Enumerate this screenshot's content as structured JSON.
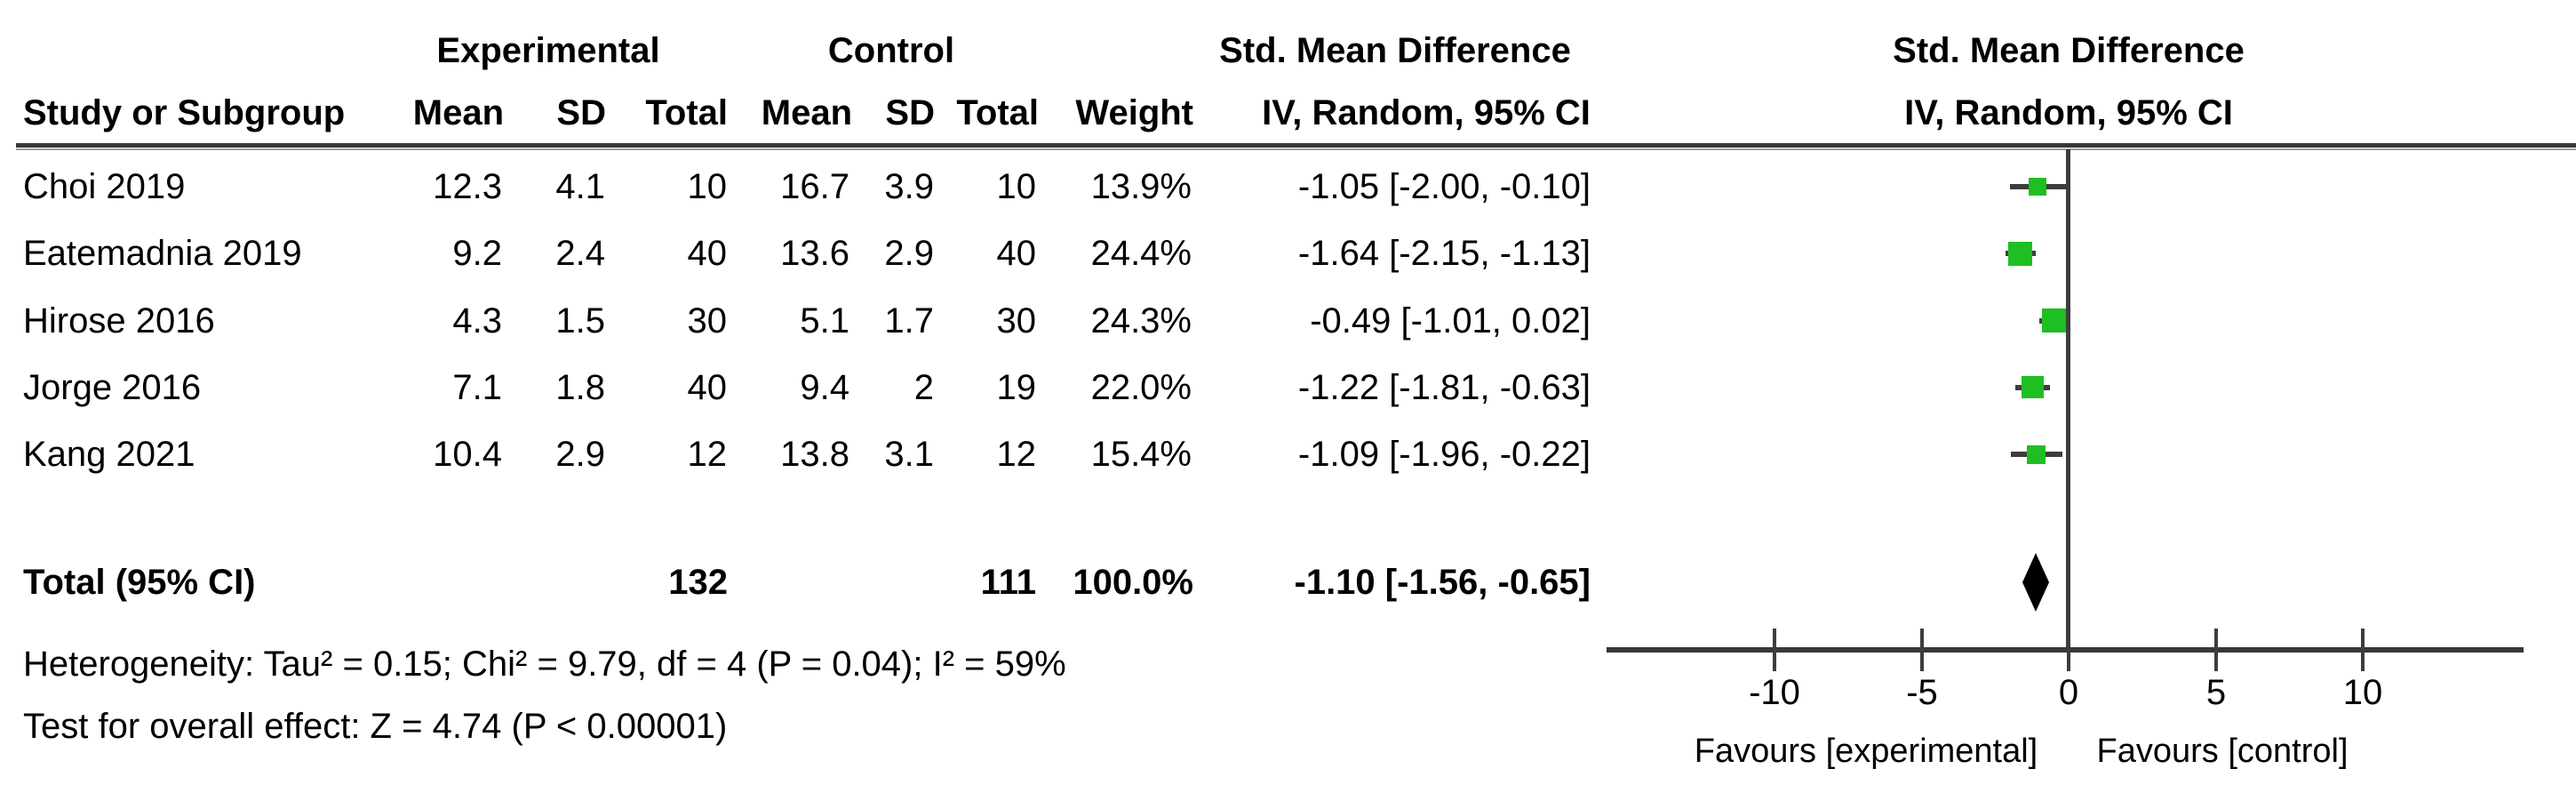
{
  "chart_data": {
    "type": "forest",
    "effect_measure": "Std. Mean Difference",
    "method": "IV, Random, 95% CI",
    "headers": {
      "study": "Study or Subgroup",
      "group1": "Experimental",
      "group2": "Control",
      "mean": "Mean",
      "sd": "SD",
      "total": "Total",
      "weight": "Weight",
      "effect_label": "Std. Mean Difference",
      "method_label": "IV, Random, 95% CI"
    },
    "studies": [
      {
        "name": "Choi 2019",
        "exp_mean": "12.3",
        "exp_sd": "4.1",
        "exp_total": "10",
        "ctl_mean": "16.7",
        "ctl_sd": "3.9",
        "ctl_total": "10",
        "weight": "13.9%",
        "weight_value": 13.9,
        "smd": -1.05,
        "ci_lower": -2.0,
        "ci_upper": -0.1,
        "ci_text": "-1.05 [-2.00, -0.10]"
      },
      {
        "name": "Eatemadnia 2019",
        "exp_mean": "9.2",
        "exp_sd": "2.4",
        "exp_total": "40",
        "ctl_mean": "13.6",
        "ctl_sd": "2.9",
        "ctl_total": "40",
        "weight": "24.4%",
        "weight_value": 24.4,
        "smd": -1.64,
        "ci_lower": -2.15,
        "ci_upper": -1.13,
        "ci_text": "-1.64 [-2.15, -1.13]"
      },
      {
        "name": "Hirose 2016",
        "exp_mean": "4.3",
        "exp_sd": "1.5",
        "exp_total": "30",
        "ctl_mean": "5.1",
        "ctl_sd": "1.7",
        "ctl_total": "30",
        "weight": "24.3%",
        "weight_value": 24.3,
        "smd": -0.49,
        "ci_lower": -1.01,
        "ci_upper": 0.02,
        "ci_text": "-0.49 [-1.01, 0.02]"
      },
      {
        "name": "Jorge 2016",
        "exp_mean": "7.1",
        "exp_sd": "1.8",
        "exp_total": "40",
        "ctl_mean": "9.4",
        "ctl_sd": "2",
        "ctl_total": "19",
        "weight": "22.0%",
        "weight_value": 22.0,
        "smd": -1.22,
        "ci_lower": -1.81,
        "ci_upper": -0.63,
        "ci_text": "-1.22 [-1.81, -0.63]"
      },
      {
        "name": "Kang 2021",
        "exp_mean": "10.4",
        "exp_sd": "2.9",
        "exp_total": "12",
        "ctl_mean": "13.8",
        "ctl_sd": "3.1",
        "ctl_total": "12",
        "weight": "15.4%",
        "weight_value": 15.4,
        "smd": -1.09,
        "ci_lower": -1.96,
        "ci_upper": -0.22,
        "ci_text": "-1.09 [-1.96, -0.22]"
      }
    ],
    "total": {
      "label": "Total (95% CI)",
      "exp_total": "132",
      "ctl_total": "111",
      "weight": "100.0%",
      "smd": -1.1,
      "ci_lower": -1.56,
      "ci_upper": -0.65,
      "ci_text": "-1.10 [-1.56, -0.65]"
    },
    "heterogeneity": "Heterogeneity: Tau² = 0.15; Chi² = 9.79, df = 4 (P = 0.04); I² = 59%",
    "overall_effect": "Test for overall effect: Z = 4.74 (P < 0.00001)",
    "axis": {
      "ticks": [
        -10,
        -5,
        0,
        5,
        10
      ],
      "tick_labels": [
        "-10",
        "-5",
        "0",
        "5",
        "10"
      ],
      "favours_left": "Favours [experimental]",
      "favours_right": "Favours [control]"
    },
    "colors": {
      "marker_green": "#1fbe23",
      "diamond_black": "#000000",
      "line_gray": "#3d3d3d"
    }
  }
}
